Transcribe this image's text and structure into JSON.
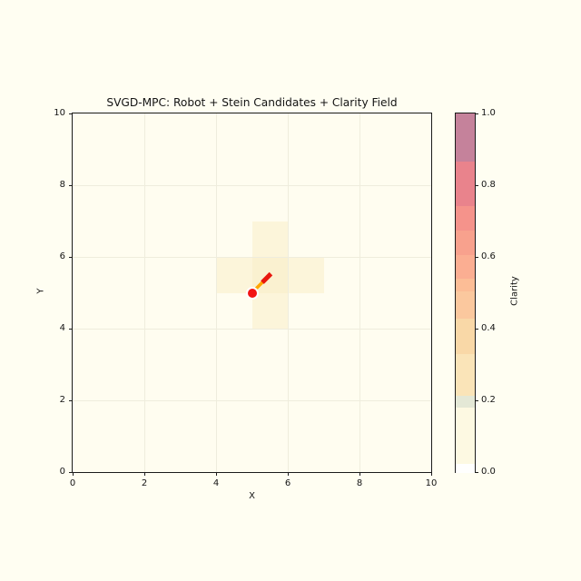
{
  "title": "SVGD-MPC: Robot + Stein Candidates + Clarity Field",
  "chart_data": {
    "type": "heatmap",
    "title": "SVGD-MPC: Robot + Stein Candidates + Clarity Field",
    "xlabel": "X",
    "ylabel": "Y",
    "xlim": [
      0,
      10
    ],
    "ylim": [
      0,
      10
    ],
    "xticks": [
      0,
      2,
      4,
      6,
      8,
      10
    ],
    "yticks": [
      0,
      2,
      4,
      6,
      8,
      10
    ],
    "grid": true,
    "axes_background": "#fffdf0",
    "figure_background": "#fffef2",
    "gridline_color": "#efeddd",
    "robot": {
      "x": 5.0,
      "y": 5.0,
      "heading_deg": 45,
      "marker_color": "#f21414",
      "marker_edge_color": "#ffffff"
    },
    "heading_arrow": {
      "shaft": {
        "from": [
          5.07,
          5.07
        ],
        "to": [
          5.33,
          5.33
        ],
        "color": "#ffa500",
        "width": 3.5
      },
      "head": {
        "from": [
          5.29,
          5.29
        ],
        "to": [
          5.53,
          5.53
        ],
        "color": "#e8170d",
        "width": 5
      }
    },
    "clarity_field": {
      "description": "10x10 grid of 1x1 cells; plus-shaped region of raised clarity centered on cell (5,5)",
      "background_value": 0.05,
      "highlight_cells": [
        {
          "x": 5,
          "y": 6,
          "w": 1,
          "h": 1,
          "value": 0.15,
          "color": "#fcf5da"
        },
        {
          "x": 4,
          "y": 5,
          "w": 1,
          "h": 1,
          "value": 0.15,
          "color": "#fcf5da"
        },
        {
          "x": 5,
          "y": 5,
          "w": 1,
          "h": 1,
          "value": 0.18,
          "color": "#faf1d0"
        },
        {
          "x": 6,
          "y": 5,
          "w": 1,
          "h": 1,
          "value": 0.15,
          "color": "#fcf5da"
        },
        {
          "x": 5,
          "y": 4,
          "w": 1,
          "h": 1,
          "value": 0.15,
          "color": "#fcf5da"
        }
      ]
    },
    "colorbar": {
      "label": "Clarity",
      "ticks": [
        "0.0",
        "0.2",
        "0.4",
        "0.6",
        "0.8",
        "1.0"
      ],
      "range": [
        0.0,
        1.0
      ],
      "bands": [
        {
          "v0": 0.0,
          "v1": 0.025,
          "color": "#fffffe"
        },
        {
          "v0": 0.025,
          "v1": 0.18,
          "color": "#fdf9e2"
        },
        {
          "v0": 0.18,
          "v1": 0.215,
          "color": "#e4e8d6"
        },
        {
          "v0": 0.215,
          "v1": 0.33,
          "color": "#fae4b8"
        },
        {
          "v0": 0.33,
          "v1": 0.43,
          "color": "#f9d8a7"
        },
        {
          "v0": 0.43,
          "v1": 0.505,
          "color": "#fbc89e"
        },
        {
          "v0": 0.505,
          "v1": 0.54,
          "color": "#fcbd96"
        },
        {
          "v0": 0.54,
          "v1": 0.607,
          "color": "#fbae92"
        },
        {
          "v0": 0.607,
          "v1": 0.674,
          "color": "#f8a18d"
        },
        {
          "v0": 0.674,
          "v1": 0.742,
          "color": "#f5938b"
        },
        {
          "v0": 0.742,
          "v1": 0.868,
          "color": "#e9838c"
        },
        {
          "v0": 0.868,
          "v1": 1.0,
          "color": "#c5829b"
        }
      ]
    }
  }
}
